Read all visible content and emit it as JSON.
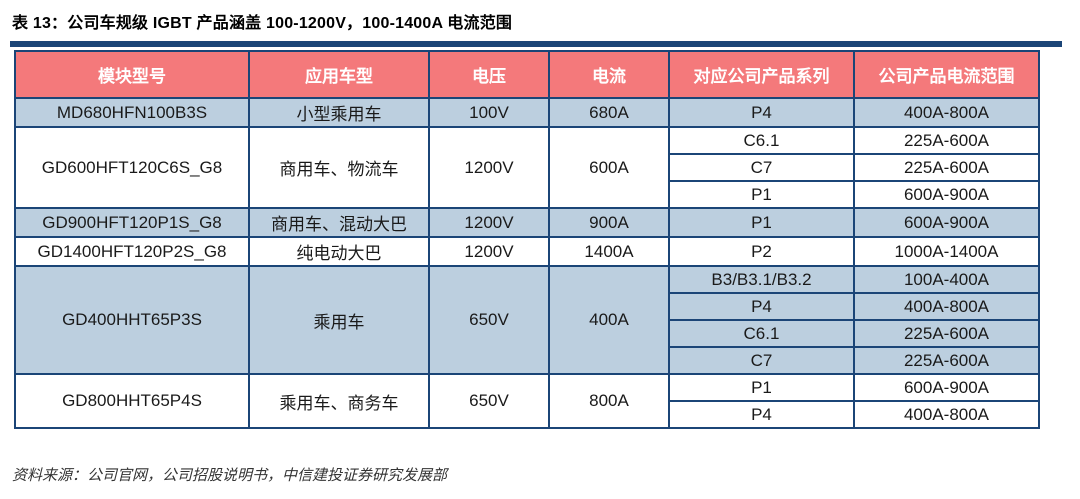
{
  "title": "表 13：公司车规级 IGBT 产品涵盖 100-1200V，100-1400A 电流范围",
  "source_note": "资料来源：公司官网，公司招股说明书，中信建投证券研究发展部",
  "colors": {
    "header_bg": "#F4797B",
    "header_text": "#FFFFFF",
    "border_navy": "#1B4577",
    "row_blue": "#BCCFDF",
    "row_white": "#FFFFFF",
    "cell_text": "#1A1A1A"
  },
  "table": {
    "headers": [
      "模块型号",
      "应用车型",
      "电压",
      "电流",
      "对应公司产品系列",
      "公司产品电流范围"
    ],
    "rows": [
      {
        "module": "MD680HFN100B3S",
        "vehicle": "小型乘用车",
        "voltage": "100V",
        "current": "680A",
        "shade": "blue",
        "series": [
          {
            "name": "P4",
            "range": "400A-800A"
          }
        ]
      },
      {
        "module": "GD600HFT120C6S_G8",
        "vehicle": "商用车、物流车",
        "voltage": "1200V",
        "current": "600A",
        "shade": "white",
        "series": [
          {
            "name": "C6.1",
            "range": "225A-600A"
          },
          {
            "name": "C7",
            "range": "225A-600A"
          },
          {
            "name": "P1",
            "range": "600A-900A"
          }
        ]
      },
      {
        "module": "GD900HFT120P1S_G8",
        "vehicle": "商用车、混动大巴",
        "voltage": "1200V",
        "current": "900A",
        "shade": "blue",
        "series": [
          {
            "name": "P1",
            "range": "600A-900A"
          }
        ]
      },
      {
        "module": "GD1400HFT120P2S_G8",
        "vehicle": "纯电动大巴",
        "voltage": "1200V",
        "current": "1400A",
        "shade": "white",
        "series": [
          {
            "name": "P2",
            "range": "1000A-1400A"
          }
        ]
      },
      {
        "module": "GD400HHT65P3S",
        "vehicle": "乘用车",
        "voltage": "650V",
        "current": "400A",
        "shade": "blue",
        "series": [
          {
            "name": "B3/B3.1/B3.2",
            "range": "100A-400A"
          },
          {
            "name": "P4",
            "range": "400A-800A"
          },
          {
            "name": "C6.1",
            "range": "225A-600A"
          },
          {
            "name": "C7",
            "range": "225A-600A"
          }
        ]
      },
      {
        "module": "GD800HHT65P4S",
        "vehicle": "乘用车、商务车",
        "voltage": "650V",
        "current": "800A",
        "shade": "white",
        "series": [
          {
            "name": "P1",
            "range": "600A-900A"
          },
          {
            "name": "P4",
            "range": "400A-800A"
          }
        ]
      }
    ]
  }
}
